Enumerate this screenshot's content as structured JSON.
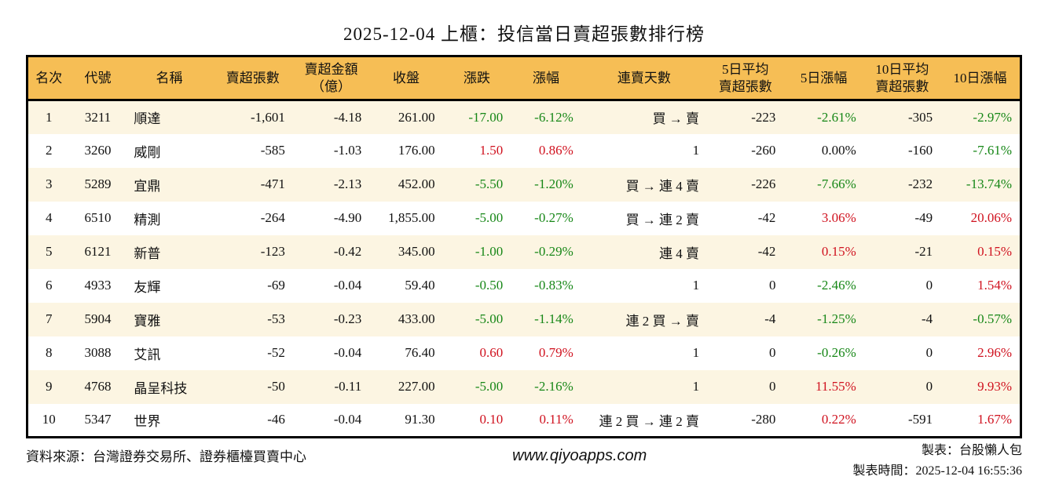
{
  "title": "2025-12-04 上櫃：投信當日賣超張數排行榜",
  "colors": {
    "header_bg": "#F6BE55",
    "row_alt_bg": "#FCF5E2",
    "up_red": "#D0121F",
    "down_green": "#178717",
    "border": "#000000"
  },
  "table": {
    "headers": [
      "名次",
      "代號",
      "名稱",
      "賣超張數",
      "賣超金額\n（億）",
      "收盤",
      "漲跌",
      "漲幅",
      "連賣天數",
      "5日平均\n賣超張數",
      "5日漲幅",
      "10日平均\n賣超張數",
      "10日漲幅"
    ],
    "rows": [
      {
        "rank": "1",
        "code": "3211",
        "name": "順達",
        "vol": "-1,601",
        "amt": "-4.18",
        "close": "261.00",
        "chg": {
          "v": "-17.00",
          "c": "down"
        },
        "pct": {
          "v": "-6.12%",
          "c": "down"
        },
        "streak": "買 → 賣",
        "avg5": "-223",
        "pct5": {
          "v": "-2.61%",
          "c": "down"
        },
        "avg10": "-305",
        "pct10": {
          "v": "-2.97%",
          "c": "down"
        }
      },
      {
        "rank": "2",
        "code": "3260",
        "name": "威剛",
        "vol": "-585",
        "amt": "-1.03",
        "close": "176.00",
        "chg": {
          "v": "1.50",
          "c": "up"
        },
        "pct": {
          "v": "0.86%",
          "c": "up"
        },
        "streak": "1",
        "avg5": "-260",
        "pct5": {
          "v": "0.00%",
          "c": "flat"
        },
        "avg10": "-160",
        "pct10": {
          "v": "-7.61%",
          "c": "down"
        }
      },
      {
        "rank": "3",
        "code": "5289",
        "name": "宜鼎",
        "vol": "-471",
        "amt": "-2.13",
        "close": "452.00",
        "chg": {
          "v": "-5.50",
          "c": "down"
        },
        "pct": {
          "v": "-1.20%",
          "c": "down"
        },
        "streak": "買 → 連 4 賣",
        "avg5": "-226",
        "pct5": {
          "v": "-7.66%",
          "c": "down"
        },
        "avg10": "-232",
        "pct10": {
          "v": "-13.74%",
          "c": "down"
        }
      },
      {
        "rank": "4",
        "code": "6510",
        "name": "精測",
        "vol": "-264",
        "amt": "-4.90",
        "close": "1,855.00",
        "chg": {
          "v": "-5.00",
          "c": "down"
        },
        "pct": {
          "v": "-0.27%",
          "c": "down"
        },
        "streak": "買 → 連 2 賣",
        "avg5": "-42",
        "pct5": {
          "v": "3.06%",
          "c": "up"
        },
        "avg10": "-49",
        "pct10": {
          "v": "20.06%",
          "c": "up"
        }
      },
      {
        "rank": "5",
        "code": "6121",
        "name": "新普",
        "vol": "-123",
        "amt": "-0.42",
        "close": "345.00",
        "chg": {
          "v": "-1.00",
          "c": "down"
        },
        "pct": {
          "v": "-0.29%",
          "c": "down"
        },
        "streak": "連 4 賣",
        "avg5": "-42",
        "pct5": {
          "v": "0.15%",
          "c": "up"
        },
        "avg10": "-21",
        "pct10": {
          "v": "0.15%",
          "c": "up"
        }
      },
      {
        "rank": "6",
        "code": "4933",
        "name": "友輝",
        "vol": "-69",
        "amt": "-0.04",
        "close": "59.40",
        "chg": {
          "v": "-0.50",
          "c": "down"
        },
        "pct": {
          "v": "-0.83%",
          "c": "down"
        },
        "streak": "1",
        "avg5": "0",
        "pct5": {
          "v": "-2.46%",
          "c": "down"
        },
        "avg10": "0",
        "pct10": {
          "v": "1.54%",
          "c": "up"
        }
      },
      {
        "rank": "7",
        "code": "5904",
        "name": "寶雅",
        "vol": "-53",
        "amt": "-0.23",
        "close": "433.00",
        "chg": {
          "v": "-5.00",
          "c": "down"
        },
        "pct": {
          "v": "-1.14%",
          "c": "down"
        },
        "streak": "連 2 買 → 賣",
        "avg5": "-4",
        "pct5": {
          "v": "-1.25%",
          "c": "down"
        },
        "avg10": "-4",
        "pct10": {
          "v": "-0.57%",
          "c": "down"
        }
      },
      {
        "rank": "8",
        "code": "3088",
        "name": "艾訊",
        "vol": "-52",
        "amt": "-0.04",
        "close": "76.40",
        "chg": {
          "v": "0.60",
          "c": "up"
        },
        "pct": {
          "v": "0.79%",
          "c": "up"
        },
        "streak": "1",
        "avg5": "0",
        "pct5": {
          "v": "-0.26%",
          "c": "down"
        },
        "avg10": "0",
        "pct10": {
          "v": "2.96%",
          "c": "up"
        }
      },
      {
        "rank": "9",
        "code": "4768",
        "name": "晶呈科技",
        "vol": "-50",
        "amt": "-0.11",
        "close": "227.00",
        "chg": {
          "v": "-5.00",
          "c": "down"
        },
        "pct": {
          "v": "-2.16%",
          "c": "down"
        },
        "streak": "1",
        "avg5": "0",
        "pct5": {
          "v": "11.55%",
          "c": "up"
        },
        "avg10": "0",
        "pct10": {
          "v": "9.93%",
          "c": "up"
        }
      },
      {
        "rank": "10",
        "code": "5347",
        "name": "世界",
        "vol": "-46",
        "amt": "-0.04",
        "close": "91.30",
        "chg": {
          "v": "0.10",
          "c": "up"
        },
        "pct": {
          "v": "0.11%",
          "c": "up"
        },
        "streak": "連 2 買 → 連 2 賣",
        "avg5": "-280",
        "pct5": {
          "v": "0.22%",
          "c": "up"
        },
        "avg10": "-591",
        "pct10": {
          "v": "1.67%",
          "c": "up"
        }
      }
    ]
  },
  "footer": {
    "source": "資料來源：台灣證券交易所、證券櫃檯買賣中心",
    "website": "www.qiyoapps.com",
    "maker": "製表：台股懶人包",
    "made_time": "製表時間：2025-12-04 16:55:36"
  }
}
